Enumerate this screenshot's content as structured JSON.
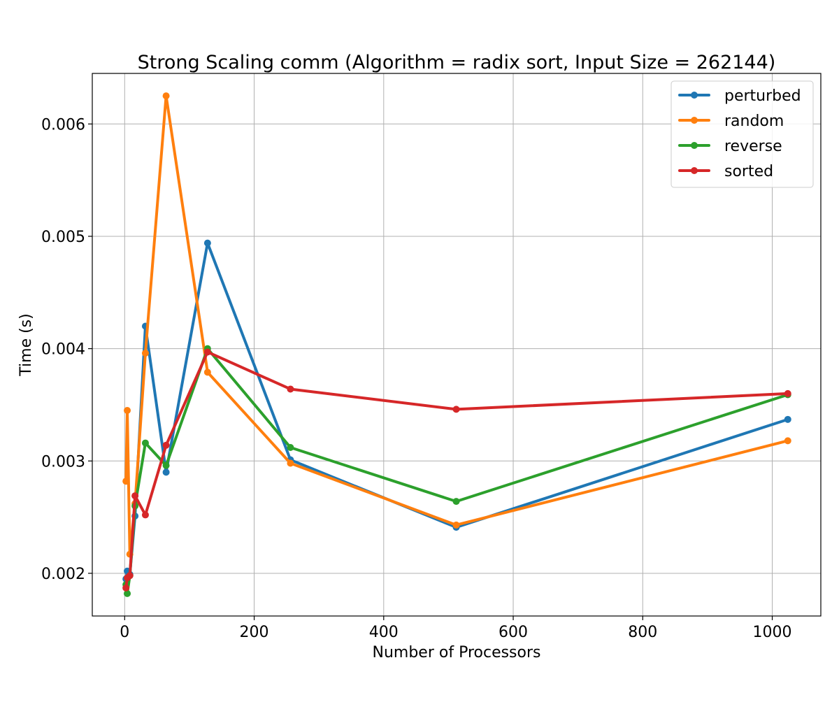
{
  "chart_data": {
    "type": "line",
    "title": "Strong Scaling comm (Algorithm = radix sort, Input Size = 262144)",
    "xlabel": "Number of Processors",
    "ylabel": "Time (s)",
    "xlim": [
      -50,
      1075
    ],
    "ylim": [
      0.00162,
      0.00645
    ],
    "xticks": [
      0,
      200,
      400,
      600,
      800,
      1000
    ],
    "xtick_labels": [
      "0",
      "200",
      "400",
      "600",
      "800",
      "1000"
    ],
    "yticks": [
      0.002,
      0.003,
      0.004,
      0.005,
      0.006
    ],
    "ytick_labels": [
      "0.002",
      "0.003",
      "0.004",
      "0.005",
      "0.006"
    ],
    "grid": true,
    "legend_position": "top-right",
    "x": [
      2,
      4,
      8,
      16,
      32,
      64,
      128,
      256,
      512,
      1024
    ],
    "series": [
      {
        "name": "perturbed",
        "color": "#1f77b4",
        "values": [
          0.00195,
          0.00202,
          0.00199,
          0.00251,
          0.0042,
          0.0029,
          0.00494,
          0.00301,
          0.00241,
          0.00337
        ]
      },
      {
        "name": "random",
        "color": "#ff7f0e",
        "values": [
          0.00282,
          0.00345,
          0.00217,
          0.00262,
          0.00396,
          0.00625,
          0.00379,
          0.00298,
          0.00243,
          0.00318
        ]
      },
      {
        "name": "reverse",
        "color": "#2ca02c",
        "values": [
          0.0019,
          0.00182,
          0.00198,
          0.0026,
          0.00316,
          0.00296,
          0.004,
          0.00312,
          0.00264,
          0.00359
        ]
      },
      {
        "name": "sorted",
        "color": "#d62728",
        "values": [
          0.00187,
          0.00196,
          0.00198,
          0.00269,
          0.00252,
          0.00314,
          0.00397,
          0.00364,
          0.00346,
          0.0036
        ]
      }
    ]
  }
}
